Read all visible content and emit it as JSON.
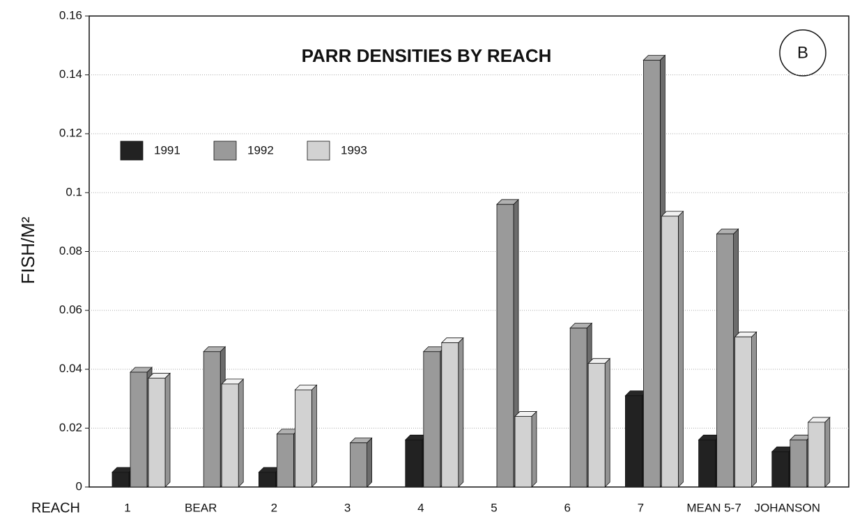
{
  "chart_data": {
    "type": "bar",
    "title": "PARR DENSITIES BY REACH",
    "annotation": "B",
    "x_label": "REACH",
    "y_label": "FISH/M²",
    "categories": [
      "1",
      "BEAR",
      "2",
      "3",
      "4",
      "5",
      "6",
      "7",
      "MEAN 5-7",
      "JOHANSON"
    ],
    "series": [
      {
        "name": "1991",
        "color": "#222222",
        "values": [
          0.005,
          null,
          0.005,
          null,
          0.016,
          null,
          null,
          0.031,
          0.016,
          0.012
        ]
      },
      {
        "name": "1992",
        "color": "#9a9a9a",
        "values": [
          0.039,
          0.046,
          0.018,
          0.015,
          0.046,
          0.096,
          0.054,
          0.145,
          0.086,
          0.016
        ]
      },
      {
        "name": "1993",
        "color": "#d2d2d2",
        "values": [
          0.037,
          0.035,
          0.033,
          null,
          0.049,
          0.024,
          0.042,
          0.092,
          0.051,
          0.022
        ]
      }
    ],
    "ylim": [
      0,
      0.16
    ],
    "yticks": [
      0,
      0.02,
      0.04,
      0.06,
      0.08,
      0.1,
      0.12,
      0.14,
      0.16
    ],
    "grid": true
  }
}
